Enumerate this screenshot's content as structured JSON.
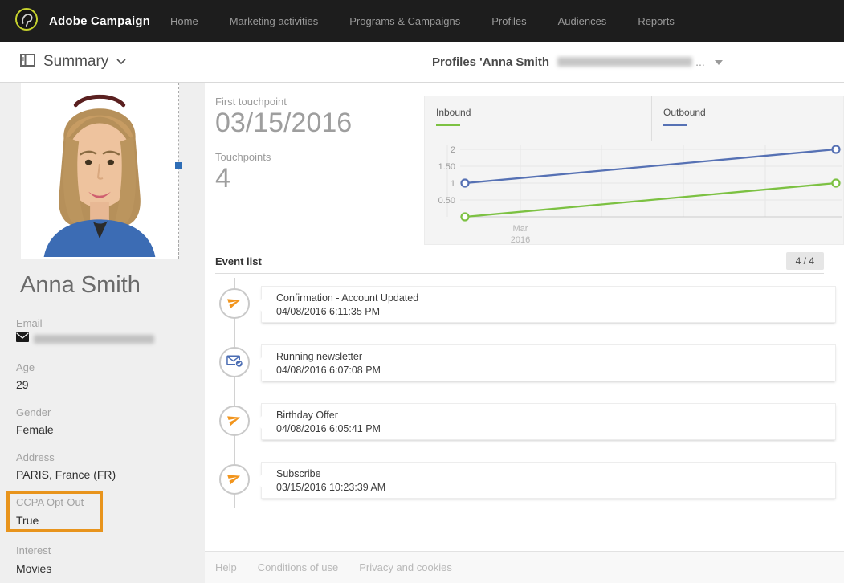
{
  "nav": {
    "brand": "Adobe Campaign",
    "items": [
      "Home",
      "Marketing activities",
      "Programs & Campaigns",
      "Profiles",
      "Audiences",
      "Reports"
    ]
  },
  "subheader": {
    "view_selector": "Summary",
    "title_prefix": "Profiles 'Anna Smith",
    "title_ellipsis": "...",
    "title_redacted": true
  },
  "profile": {
    "name": "Anna Smith",
    "fields": [
      {
        "label": "Email",
        "value": "",
        "redacted": true
      },
      {
        "label": "Age",
        "value": "29"
      },
      {
        "label": "Gender",
        "value": "Female"
      },
      {
        "label": "Address",
        "value": "PARIS, France (FR)"
      },
      {
        "label": "CCPA Opt-Out",
        "value": "True",
        "highlighted": true
      },
      {
        "label": "Interest",
        "value": "Movies"
      }
    ],
    "highlight_color": "#E8941C"
  },
  "stats": {
    "first_touchpoint_label": "First touchpoint",
    "first_touchpoint_value": "03/15/2016",
    "touchpoints_label": "Touchpoints",
    "touchpoints_value": "4"
  },
  "chart_data": {
    "type": "line",
    "legend_position": "top",
    "x_axis": {
      "tick_label": [
        "Mar",
        "2016"
      ]
    },
    "yticks": [
      {
        "value": 2,
        "label": "2"
      },
      {
        "value": 1.5,
        "label": "1.50"
      },
      {
        "value": 1,
        "label": "1"
      },
      {
        "value": 0.5,
        "label": "0.50"
      }
    ],
    "ylim": [
      0,
      2.2
    ],
    "series": [
      {
        "name": "Inbound",
        "color": "#7cc142",
        "points": [
          {
            "x": "Mar 2016 start",
            "y": 0
          },
          {
            "x": "end",
            "y": 1
          }
        ]
      },
      {
        "name": "Outbound",
        "color": "#5671b4",
        "points": [
          {
            "x": "Mar 2016 start",
            "y": 1
          },
          {
            "x": "end",
            "y": 2
          }
        ]
      }
    ]
  },
  "events": {
    "title": "Event list",
    "counter": "4 / 4",
    "items": [
      {
        "title": "Confirmation - Account Updated",
        "timestamp": "04/08/2016 6:11:35 PM",
        "icon": "send-icon"
      },
      {
        "title": "Running newsletter",
        "timestamp": "04/08/2016 6:07:08 PM",
        "icon": "newsletter-delivered-icon"
      },
      {
        "title": "Birthday Offer",
        "timestamp": "04/08/2016 6:05:41 PM",
        "icon": "send-icon"
      },
      {
        "title": "Subscribe",
        "timestamp": "03/15/2016 10:23:39 AM",
        "icon": "send-icon"
      }
    ]
  },
  "footer": {
    "links": [
      "Help",
      "Conditions of use",
      "Privacy and cookies"
    ]
  }
}
